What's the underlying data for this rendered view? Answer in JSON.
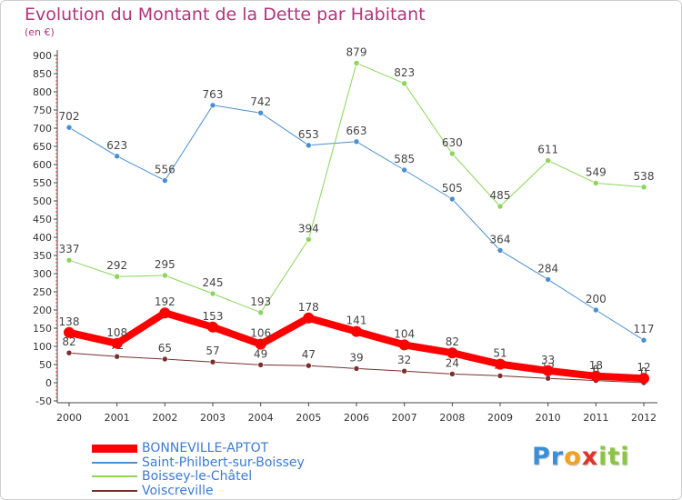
{
  "header": {
    "title": "Evolution du Montant de la Dette par Habitant",
    "subtitle": "(en €)"
  },
  "logo": {
    "letters": [
      {
        "ch": "P",
        "color": "#3a8fd6"
      },
      {
        "ch": "r",
        "color": "#3a8fd6"
      },
      {
        "ch": "o",
        "color": "#f3a21f"
      },
      {
        "ch": "x",
        "color": "#e0342c"
      },
      {
        "ch": "i",
        "color": "#8cc63f"
      },
      {
        "ch": "t",
        "color": "#8cc63f"
      },
      {
        "ch": "i",
        "color": "#8cc63f"
      }
    ]
  },
  "chart_data": {
    "type": "line",
    "x": [
      "2000",
      "2001",
      "2002",
      "2003",
      "2004",
      "2005",
      "2006",
      "2007",
      "2008",
      "2009",
      "2010",
      "2011",
      "2012"
    ],
    "ylim": [
      -50,
      900
    ],
    "yticks": [
      -50,
      0,
      50,
      100,
      150,
      200,
      250,
      300,
      350,
      400,
      450,
      500,
      550,
      600,
      650,
      700,
      750,
      800,
      850,
      900
    ],
    "grid": false,
    "legend_position": "bottom-left",
    "series": [
      {
        "name": "Saint-Philbert-sur-Boissey",
        "color": "#4a8fd0",
        "width": 1,
        "values": [
          702,
          623,
          556,
          763,
          742,
          653,
          663,
          585,
          505,
          364,
          284,
          200,
          117
        ],
        "labels": [
          "702",
          "623",
          "556",
          "763",
          "742",
          "653",
          "663",
          "585",
          "505",
          "364",
          "284",
          "200",
          "117"
        ]
      },
      {
        "name": "Boissey-le-Châtel",
        "color": "#8cd45c",
        "width": 1,
        "values": [
          337,
          292,
          295,
          245,
          193,
          394,
          879,
          823,
          630,
          485,
          611,
          549,
          538
        ],
        "labels": [
          "337",
          "292",
          "295",
          "245",
          "193",
          "394",
          "879",
          "823",
          "630",
          "485",
          "611",
          "549",
          "538"
        ]
      },
      {
        "name": "Voiscreville",
        "color": "#7a2e2e",
        "width": 1,
        "values": [
          82,
          72,
          65,
          57,
          49,
          47,
          39,
          32,
          24,
          19,
          12,
          6,
          0
        ],
        "labels": [
          "82",
          "72",
          "65",
          "57",
          "49",
          "47",
          "39",
          "32",
          "24",
          "19",
          "12",
          "6",
          "0"
        ]
      },
      {
        "name": "BONNEVILLE-APTOT",
        "color": "#ff0000",
        "width": 8,
        "values": [
          138,
          108,
          192,
          153,
          106,
          178,
          141,
          104,
          82,
          51,
          33,
          18,
          12
        ],
        "labels": [
          "138",
          "108",
          "192",
          "153",
          "106",
          "178",
          "141",
          "104",
          "82",
          "51",
          "33",
          "18",
          "12"
        ]
      }
    ],
    "legend_order": [
      "BONNEVILLE-APTOT",
      "Saint-Philbert-sur-Boissey",
      "Boissey-le-Châtel",
      "Voiscreville"
    ]
  }
}
